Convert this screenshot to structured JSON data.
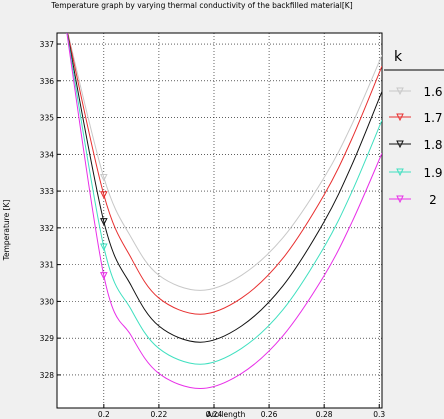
{
  "chart_data": {
    "type": "line",
    "title": "Temperature graph by varying thermal conductivity of the backfilled material[K]",
    "xlabel": "Arc-length",
    "ylabel": "Temperature [K]",
    "xlim": [
      0.183,
      0.301
    ],
    "ylim": [
      327.1,
      337.3
    ],
    "xticks": [
      0.2,
      0.22,
      0.24,
      0.26,
      0.28,
      0.3
    ],
    "xtick_labels": [
      "0.2",
      "0.22",
      "0.24",
      "0.26",
      "0.28",
      "0.3"
    ],
    "yticks": [
      328,
      329,
      330,
      331,
      332,
      333,
      334,
      335,
      336,
      337
    ],
    "ytick_labels": [
      "328",
      "329",
      "330",
      "331",
      "332",
      "333",
      "334",
      "335",
      "336",
      "337"
    ],
    "grid": true,
    "legend": {
      "title": "k",
      "placement": "outside-right",
      "entries": [
        "1.6",
        "1.7",
        "1.8",
        "1.9",
        "2"
      ]
    },
    "series": [
      {
        "name": "1.6",
        "color": "#c8c8c8",
        "x": [
          0.186,
          0.2,
          0.21,
          0.22,
          0.235,
          0.25,
          0.265,
          0.28,
          0.29,
          0.301
        ],
        "y": [
          337.6,
          333.37,
          331.73,
          330.71,
          330.3,
          330.71,
          331.73,
          333.37,
          334.8,
          336.7
        ]
      },
      {
        "name": "1.7",
        "color": "#e83030",
        "x": [
          0.186,
          0.2,
          0.21,
          0.22,
          0.235,
          0.25,
          0.265,
          0.28,
          0.29,
          0.301
        ],
        "y": [
          337.6,
          332.9,
          331.17,
          330.09,
          329.65,
          330.09,
          331.17,
          332.9,
          334.41,
          336.4
        ]
      },
      {
        "name": "1.8",
        "color": "#111111",
        "x": [
          0.186,
          0.2,
          0.21,
          0.22,
          0.235,
          0.25,
          0.265,
          0.28,
          0.29,
          0.301
        ],
        "y": [
          337.6,
          332.17,
          330.42,
          329.33,
          328.89,
          329.33,
          330.42,
          332.17,
          333.7,
          335.71
        ]
      },
      {
        "name": "1.9",
        "color": "#40e0c0",
        "x": [
          0.186,
          0.2,
          0.21,
          0.22,
          0.235,
          0.25,
          0.265,
          0.28,
          0.29,
          0.301
        ],
        "y": [
          337.6,
          331.48,
          329.77,
          328.72,
          328.29,
          328.72,
          329.77,
          331.48,
          332.97,
          334.93
        ]
      },
      {
        "name": "2",
        "color": "#e830e8",
        "x": [
          0.186,
          0.2,
          0.21,
          0.22,
          0.235,
          0.25,
          0.265,
          0.28,
          0.29,
          0.301
        ],
        "y": [
          337.6,
          330.7,
          329.06,
          328.04,
          327.63,
          328.04,
          329.06,
          330.7,
          332.14,
          334.03
        ]
      }
    ]
  }
}
